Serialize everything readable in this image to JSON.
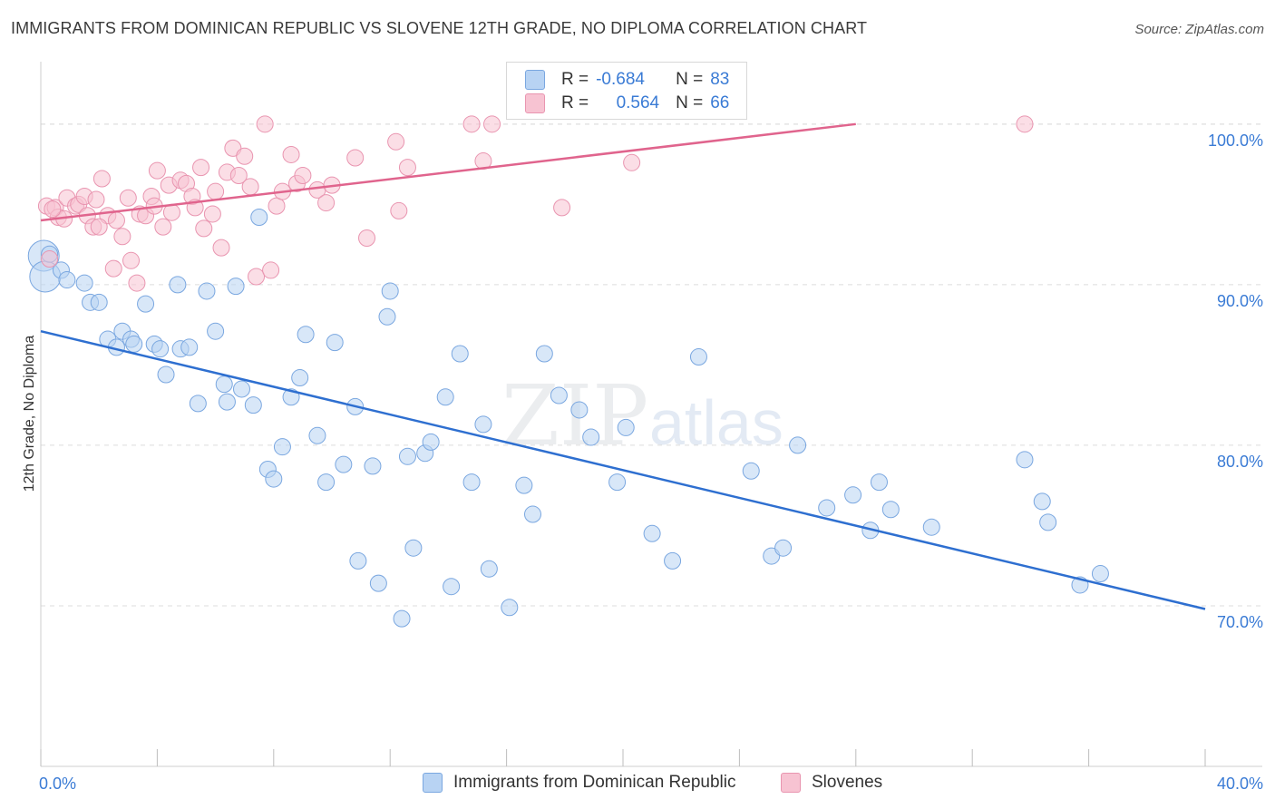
{
  "header": {
    "title": "IMMIGRANTS FROM DOMINICAN REPUBLIC VS SLOVENE 12TH GRADE, NO DIPLOMA CORRELATION CHART",
    "source": "Source: ZipAtlas.com"
  },
  "watermark": {
    "part1": "ZIP",
    "part2": "atlas"
  },
  "legend_stats": {
    "rows": [
      {
        "r_label": "R =",
        "r_value": "-0.684",
        "n_label": "N =",
        "n_value": "83",
        "color": "#b8d3f3",
        "border": "#7aa7e0"
      },
      {
        "r_label": "R =",
        "r_value": "0.564",
        "n_label": "N =",
        "n_value": "66",
        "color": "#f7c3d2",
        "border": "#e995b0"
      }
    ]
  },
  "chart_data": {
    "type": "scatter",
    "xlabel": "",
    "ylabel": "12th Grade, No Diploma",
    "xlim": [
      0,
      40
    ],
    "ylim": [
      60,
      104
    ],
    "x_tick_labels": [
      "0.0%",
      "40.0%"
    ],
    "y_ticks": [
      70,
      80,
      90,
      100
    ],
    "y_tick_labels": [
      "70.0%",
      "80.0%",
      "90.0%",
      "100.0%"
    ],
    "grid": true,
    "legend_position": "bottom",
    "series": [
      {
        "name": "Immigrants from Dominican Republic",
        "color": "#b8d3f3",
        "stroke": "#7aa7e0",
        "line_color": "#2e6fd0",
        "trend": [
          [
            0.0,
            87.1
          ],
          [
            40.0,
            69.8
          ]
        ],
        "points": [
          [
            0.1,
            91.8
          ],
          [
            0.15,
            90.5
          ],
          [
            0.7,
            90.9
          ],
          [
            0.9,
            90.3
          ],
          [
            1.5,
            90.1
          ],
          [
            1.7,
            88.9
          ],
          [
            2.0,
            88.9
          ],
          [
            2.3,
            86.6
          ],
          [
            2.6,
            86.1
          ],
          [
            2.8,
            87.1
          ],
          [
            3.1,
            86.6
          ],
          [
            3.2,
            86.3
          ],
          [
            3.6,
            88.8
          ],
          [
            3.9,
            86.3
          ],
          [
            4.1,
            86.0
          ],
          [
            4.3,
            84.4
          ],
          [
            4.7,
            90.0
          ],
          [
            4.8,
            86.0
          ],
          [
            5.1,
            86.1
          ],
          [
            5.4,
            82.6
          ],
          [
            5.7,
            89.6
          ],
          [
            6.0,
            87.1
          ],
          [
            6.3,
            83.8
          ],
          [
            6.4,
            82.7
          ],
          [
            6.7,
            89.9
          ],
          [
            6.9,
            83.5
          ],
          [
            7.3,
            82.5
          ],
          [
            7.5,
            94.2
          ],
          [
            7.8,
            78.5
          ],
          [
            8.0,
            77.9
          ],
          [
            8.3,
            79.9
          ],
          [
            8.6,
            83.0
          ],
          [
            8.9,
            84.2
          ],
          [
            9.1,
            86.9
          ],
          [
            9.5,
            80.6
          ],
          [
            9.8,
            77.7
          ],
          [
            10.1,
            86.4
          ],
          [
            10.4,
            78.8
          ],
          [
            10.8,
            82.4
          ],
          [
            10.9,
            72.8
          ],
          [
            11.4,
            78.7
          ],
          [
            11.6,
            71.4
          ],
          [
            11.9,
            88.0
          ],
          [
            12.0,
            89.6
          ],
          [
            12.4,
            69.2
          ],
          [
            12.6,
            79.3
          ],
          [
            12.8,
            73.6
          ],
          [
            13.2,
            79.5
          ],
          [
            13.4,
            80.2
          ],
          [
            13.9,
            83.0
          ],
          [
            14.1,
            71.2
          ],
          [
            14.4,
            85.7
          ],
          [
            14.8,
            77.7
          ],
          [
            15.2,
            81.3
          ],
          [
            15.4,
            72.3
          ],
          [
            16.1,
            69.9
          ],
          [
            16.6,
            77.5
          ],
          [
            16.9,
            75.7
          ],
          [
            17.3,
            85.7
          ],
          [
            17.8,
            83.1
          ],
          [
            18.5,
            82.2
          ],
          [
            18.9,
            80.5
          ],
          [
            19.8,
            77.7
          ],
          [
            20.1,
            81.1
          ],
          [
            21.0,
            74.5
          ],
          [
            21.7,
            72.8
          ],
          [
            22.6,
            85.5
          ],
          [
            24.4,
            78.4
          ],
          [
            25.1,
            73.1
          ],
          [
            25.5,
            73.6
          ],
          [
            26.0,
            80.0
          ],
          [
            27.0,
            76.1
          ],
          [
            27.9,
            76.9
          ],
          [
            28.5,
            74.7
          ],
          [
            28.8,
            77.7
          ],
          [
            29.2,
            76.0
          ],
          [
            30.6,
            74.9
          ],
          [
            33.8,
            79.1
          ],
          [
            34.4,
            76.5
          ],
          [
            34.6,
            75.2
          ],
          [
            35.7,
            71.3
          ],
          [
            36.4,
            72.0
          ],
          [
            0.3,
            91.9
          ]
        ]
      },
      {
        "name": "Slovenes",
        "color": "#f7c3d2",
        "stroke": "#e995b0",
        "line_color": "#e0648d",
        "trend": [
          [
            0.0,
            94.0
          ],
          [
            28.0,
            100.0
          ]
        ],
        "points": [
          [
            0.2,
            94.9
          ],
          [
            0.3,
            91.6
          ],
          [
            0.5,
            94.8
          ],
          [
            0.6,
            94.2
          ],
          [
            0.8,
            94.1
          ],
          [
            0.9,
            95.4
          ],
          [
            1.2,
            94.9
          ],
          [
            1.3,
            95.0
          ],
          [
            1.5,
            95.5
          ],
          [
            1.6,
            94.3
          ],
          [
            1.8,
            93.6
          ],
          [
            1.9,
            95.3
          ],
          [
            2.1,
            96.6
          ],
          [
            2.3,
            94.3
          ],
          [
            2.5,
            91.0
          ],
          [
            2.6,
            94.0
          ],
          [
            2.8,
            93.0
          ],
          [
            3.0,
            95.4
          ],
          [
            3.1,
            91.5
          ],
          [
            3.3,
            90.1
          ],
          [
            3.4,
            94.4
          ],
          [
            3.6,
            94.3
          ],
          [
            3.8,
            95.5
          ],
          [
            3.9,
            94.9
          ],
          [
            4.0,
            97.1
          ],
          [
            4.2,
            93.6
          ],
          [
            4.4,
            96.2
          ],
          [
            4.5,
            94.5
          ],
          [
            4.8,
            96.5
          ],
          [
            5.0,
            96.3
          ],
          [
            5.2,
            95.5
          ],
          [
            5.3,
            94.8
          ],
          [
            5.5,
            97.3
          ],
          [
            5.6,
            93.5
          ],
          [
            5.9,
            94.4
          ],
          [
            6.0,
            95.8
          ],
          [
            6.2,
            92.3
          ],
          [
            6.4,
            97.0
          ],
          [
            6.6,
            98.5
          ],
          [
            6.8,
            96.8
          ],
          [
            7.0,
            98.0
          ],
          [
            7.2,
            96.1
          ],
          [
            7.4,
            90.5
          ],
          [
            7.7,
            100.0
          ],
          [
            7.9,
            90.9
          ],
          [
            8.1,
            94.9
          ],
          [
            8.3,
            95.8
          ],
          [
            8.6,
            98.1
          ],
          [
            8.8,
            96.3
          ],
          [
            9.0,
            96.8
          ],
          [
            9.5,
            95.9
          ],
          [
            9.8,
            95.1
          ],
          [
            10.0,
            96.2
          ],
          [
            10.8,
            97.9
          ],
          [
            11.2,
            92.9
          ],
          [
            12.2,
            98.9
          ],
          [
            12.3,
            94.6
          ],
          [
            12.6,
            97.3
          ],
          [
            14.8,
            100.0
          ],
          [
            15.2,
            97.7
          ],
          [
            15.5,
            100.0
          ],
          [
            17.9,
            94.8
          ],
          [
            20.3,
            97.6
          ],
          [
            33.8,
            100.0
          ],
          [
            0.4,
            94.7
          ],
          [
            2.0,
            93.6
          ]
        ]
      }
    ]
  }
}
